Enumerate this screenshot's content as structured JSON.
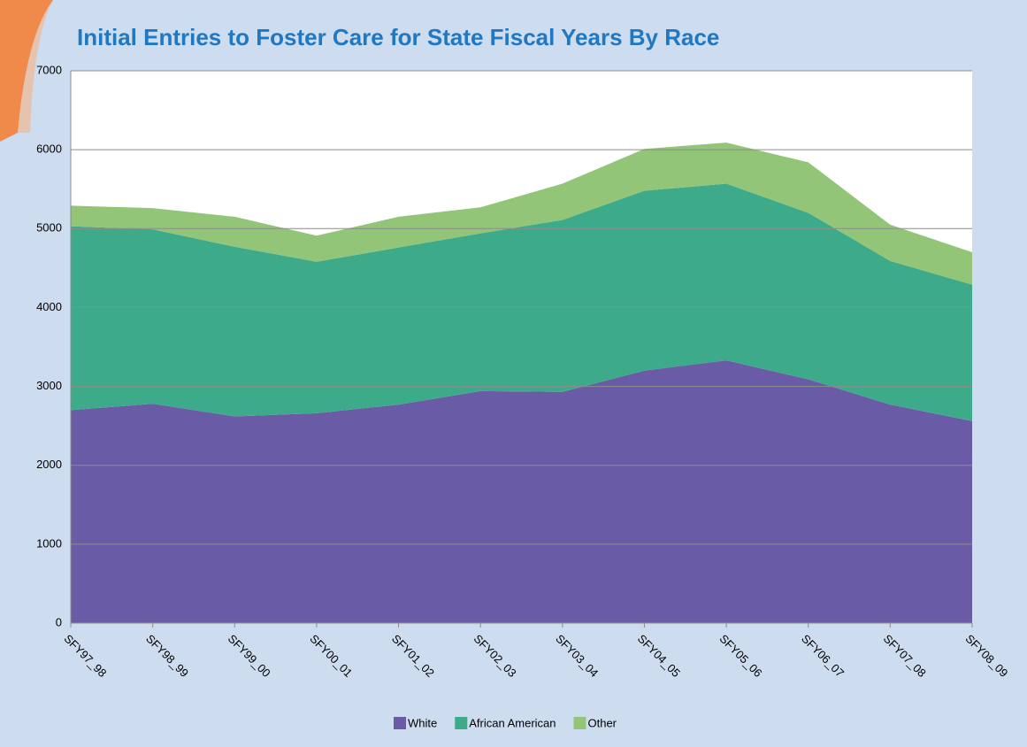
{
  "chart_data": {
    "type": "stacked_area",
    "title": "Initial Entries to Foster Care for State Fiscal Years By Race",
    "categories": [
      "SFY97_98",
      "SFY98_99",
      "SFY99_00",
      "SFY00_01",
      "SFY01_02",
      "SFY02_03",
      "SFY03_04",
      "SFY04_05",
      "SFY05_06",
      "SFY06_07",
      "SFY07_08",
      "SFY08_09"
    ],
    "series": [
      {
        "name": "White",
        "color": "#6a5ba6",
        "values": [
          2700,
          2780,
          2620,
          2660,
          2770,
          2940,
          2930,
          3200,
          3330,
          3090,
          2770,
          2560
        ]
      },
      {
        "name": "African American",
        "color": "#3dab8a",
        "values": [
          2330,
          2210,
          2150,
          1920,
          1990,
          2000,
          2180,
          2280,
          2240,
          2110,
          1820,
          1730
        ]
      },
      {
        "name": "Other",
        "color": "#92c577",
        "values": [
          260,
          270,
          380,
          330,
          390,
          330,
          460,
          530,
          520,
          640,
          460,
          410
        ]
      }
    ],
    "ylim": [
      0,
      7000
    ],
    "yticks": [
      0,
      1000,
      2000,
      3000,
      4000,
      5000,
      6000,
      7000
    ],
    "grid": true,
    "legend": "bottom"
  }
}
